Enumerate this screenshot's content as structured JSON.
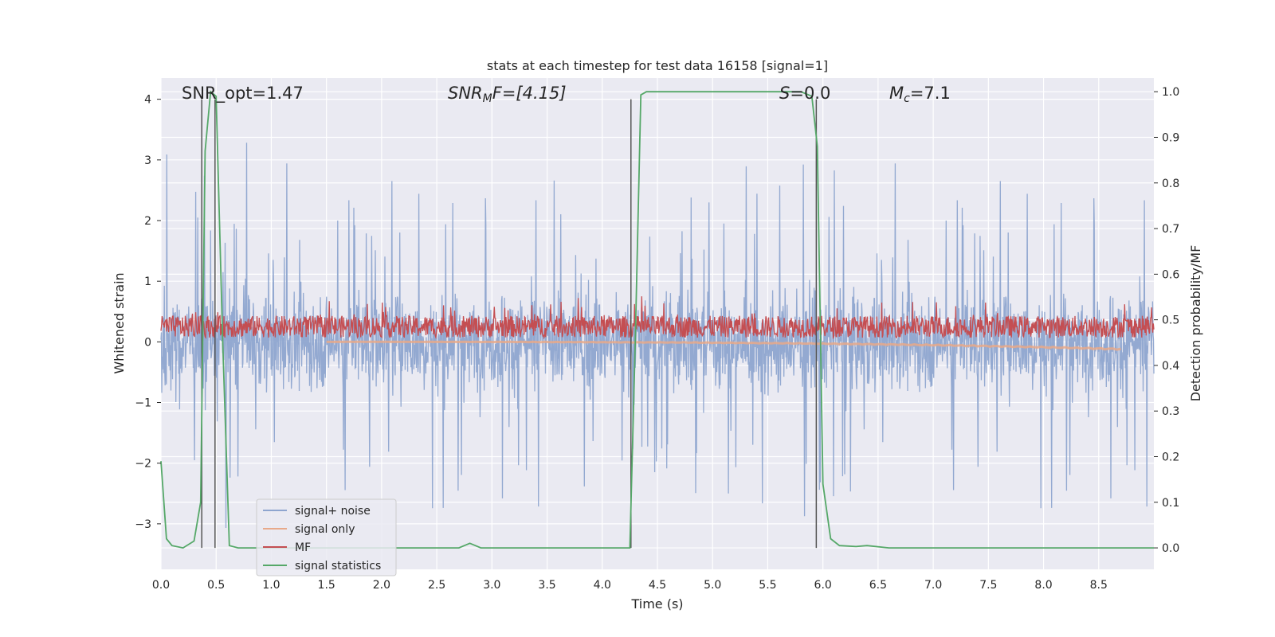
{
  "chart_data": {
    "type": "line",
    "title": "stats at each timestep for test data 16158 [signal=1]",
    "xlabel": "Time (s)",
    "ylabel": "Whitened strain",
    "y2label": "Detection probability/MF",
    "xlim": [
      0.0,
      9.0
    ],
    "ylim": [
      -3.75,
      4.35
    ],
    "y2lim": [
      -0.047,
      1.03
    ],
    "grid": true,
    "legend_position": "lower-left",
    "xticks": [
      "0.0",
      "0.5",
      "1.0",
      "1.5",
      "2.0",
      "2.5",
      "3.0",
      "3.5",
      "4.0",
      "4.5",
      "5.0",
      "5.5",
      "6.0",
      "6.5",
      "7.0",
      "7.5",
      "8.0",
      "8.5"
    ],
    "yticks": [
      "−3",
      "−2",
      "−1",
      "0",
      "1",
      "2",
      "3",
      "4"
    ],
    "y2ticks": [
      "0.0",
      "0.1",
      "0.2",
      "0.3",
      "0.4",
      "0.5",
      "0.6",
      "0.7",
      "0.8",
      "0.9",
      "1.0"
    ],
    "annotations": {
      "snr_opt": "SNR_opt=1.47",
      "snr_mf_main": "SNR",
      "snr_mf_sub": "M",
      "snr_mf_rest": "F=[4.15]",
      "s_main": "S",
      "s_rest": "=0.0",
      "mc_main": "M",
      "mc_sub": "c",
      "mc_rest": "=7.1"
    },
    "vertical_lines_x": [
      0.37,
      0.49,
      4.26,
      5.94
    ],
    "series": [
      {
        "name": "signal+ noise",
        "color": "#8ea5cf",
        "noise_band": [
          -2.0,
          1.8
        ],
        "peak_range": [
          -3.4,
          4.0
        ]
      },
      {
        "name": "signal only",
        "color": "#e8a98a",
        "y_start": 0.0,
        "y_end": -0.12,
        "x_end": 8.7
      },
      {
        "name": "MF",
        "color": "#c44e52",
        "center": 0.25,
        "amplitude": 0.4
      },
      {
        "name": "signal statistics",
        "color": "#55a868",
        "x": [
          0.0,
          0.05,
          0.1,
          0.2,
          0.3,
          0.36,
          0.4,
          0.45,
          0.5,
          0.56,
          0.62,
          0.7,
          1.0,
          2.0,
          2.7,
          2.8,
          2.9,
          3.0,
          3.5,
          4.0,
          4.2,
          4.25,
          4.3,
          4.35,
          4.4,
          4.6,
          5.0,
          5.5,
          5.8,
          5.9,
          5.95,
          6.0,
          6.07,
          6.15,
          6.3,
          6.4,
          6.6,
          7.0,
          8.0,
          9.0
        ],
        "y": [
          0.19,
          0.02,
          0.005,
          0.0,
          0.015,
          0.1,
          0.87,
          1.0,
          0.99,
          0.45,
          0.005,
          0.0,
          0.0,
          0.0,
          0.0,
          0.01,
          0.0,
          0.0,
          0.0,
          0.0,
          0.0,
          0.0,
          0.46,
          0.993,
          1.0,
          1.0,
          1.0,
          1.0,
          1.0,
          0.99,
          0.88,
          0.14,
          0.02,
          0.005,
          0.003,
          0.005,
          0.0,
          0.0,
          0.0,
          0.0
        ]
      }
    ]
  },
  "colors": {
    "plot_background": "#eaeaf2",
    "grid": "#ffffff",
    "vline": "#555555"
  }
}
